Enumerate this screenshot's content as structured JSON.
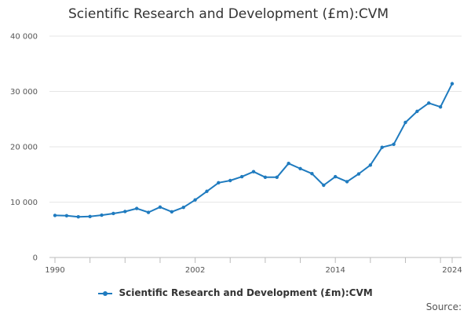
{
  "chart_data": {
    "type": "line",
    "title": "Scientific Research and Development (£m):CVM",
    "x": [
      1990,
      1991,
      1992,
      1993,
      1994,
      1995,
      1996,
      1997,
      1998,
      1999,
      2000,
      2001,
      2002,
      2003,
      2004,
      2005,
      2006,
      2007,
      2008,
      2009,
      2010,
      2011,
      2012,
      2013,
      2014,
      2015,
      2016,
      2017,
      2018,
      2019,
      2020,
      2021,
      2022,
      2023,
      2024
    ],
    "series": [
      {
        "name": "Scientific Research and Development (£m):CVM",
        "color": "#1f7bbf",
        "values": [
          7600,
          7550,
          7350,
          7400,
          7650,
          7950,
          8300,
          8850,
          8150,
          9100,
          8250,
          9050,
          10400,
          11950,
          13500,
          13900,
          14600,
          15500,
          14500,
          14500,
          17000,
          16050,
          15150,
          13050,
          14600,
          13700,
          15100,
          16700,
          19900,
          20450,
          24400,
          26400,
          27900,
          27200,
          31400
        ]
      }
    ],
    "ylim": [
      0,
      40000
    ],
    "yticks": [
      0,
      10000,
      20000,
      30000,
      40000
    ],
    "ytick_labels": [
      "0",
      "10 000",
      "20 000",
      "30 000",
      "40 000"
    ],
    "xtick_labels": [
      {
        "year": 1990,
        "label": "1990"
      },
      {
        "year": 2002,
        "label": "2002"
      },
      {
        "year": 2014,
        "label": "2014"
      },
      {
        "year": 2024,
        "label": "2024"
      }
    ],
    "xlabel": "",
    "ylabel": "",
    "grid": true,
    "legend_position": "bottom"
  },
  "source_label": "Source:"
}
